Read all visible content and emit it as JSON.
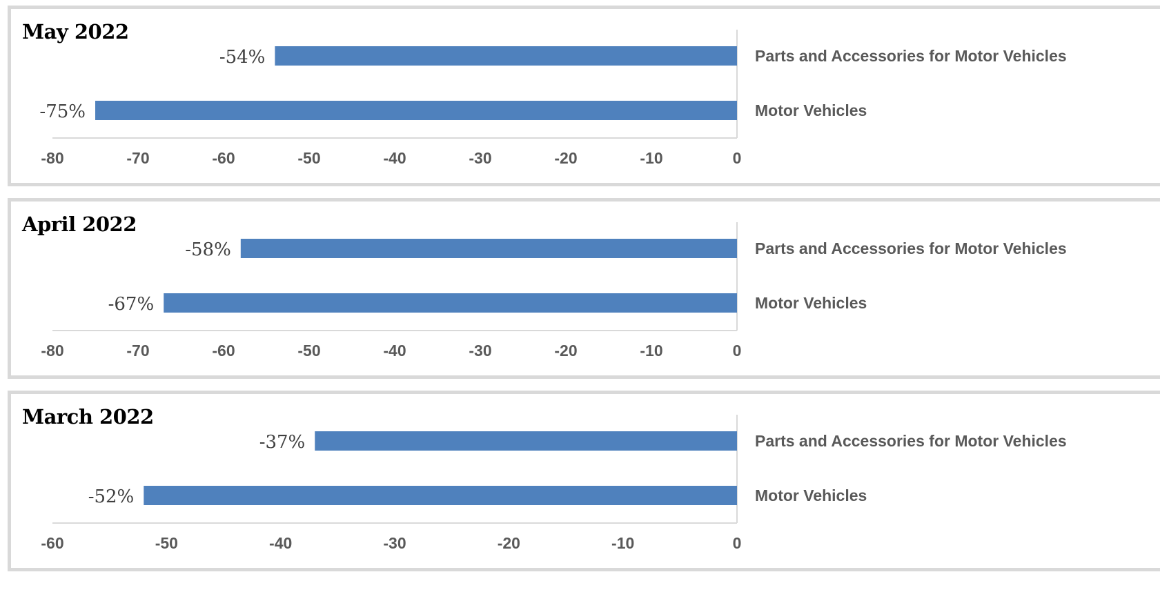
{
  "colors": {
    "bar": "#4f81bd",
    "axis_line": "#d9d9d9",
    "tick_label": "#595959",
    "category_label": "#595959",
    "data_label": "#404040",
    "panel_border": "#d9d9d9"
  },
  "chart_data": [
    {
      "type": "bar",
      "orientation": "horizontal",
      "title": "May 2022",
      "categories": [
        "Parts and Accessories for Motor Vehicles",
        "Motor Vehicles"
      ],
      "values": [
        -54,
        -75
      ],
      "data_labels": [
        "-54%",
        "-75%"
      ],
      "xlim": [
        -80,
        0
      ],
      "xticks": [
        "-80",
        "-70",
        "-60",
        "-50",
        "-40",
        "-30",
        "-20",
        "-10",
        "0"
      ],
      "category_axis": "right",
      "grid": false,
      "legend": "none"
    },
    {
      "type": "bar",
      "orientation": "horizontal",
      "title": "April 2022",
      "categories": [
        "Parts and Accessories for Motor Vehicles",
        "Motor Vehicles"
      ],
      "values": [
        -58,
        -67
      ],
      "data_labels": [
        "-58%",
        "-67%"
      ],
      "xlim": [
        -80,
        0
      ],
      "xticks": [
        "-80",
        "-70",
        "-60",
        "-50",
        "-40",
        "-30",
        "-20",
        "-10",
        "0"
      ],
      "category_axis": "right",
      "grid": false,
      "legend": "none"
    },
    {
      "type": "bar",
      "orientation": "horizontal",
      "title": "March 2022",
      "categories": [
        "Parts and Accessories for Motor Vehicles",
        "Motor Vehicles"
      ],
      "values": [
        -37,
        -52
      ],
      "data_labels": [
        "-37%",
        "-52%"
      ],
      "xlim": [
        -60,
        0
      ],
      "xticks": [
        "-60",
        "-50",
        "-40",
        "-30",
        "-20",
        "-10",
        "0"
      ],
      "category_axis": "right",
      "grid": false,
      "legend": "none"
    }
  ]
}
